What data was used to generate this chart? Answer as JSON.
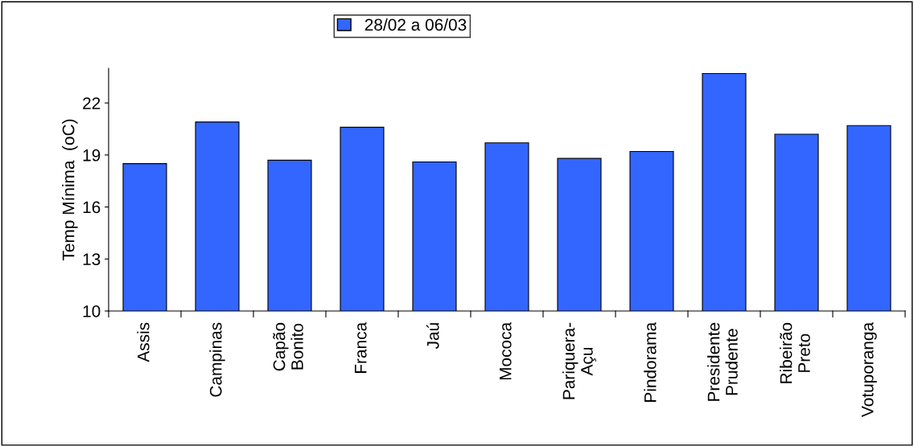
{
  "chart_data": {
    "type": "bar",
    "ylabel": "Temp Mínima  (oC)",
    "categories": [
      "Assis",
      "Campinas",
      "Capão\nBonito",
      "Franca",
      "Jaú",
      "Mococa",
      "Pariquera-\nAçu",
      "Pindorama",
      "Presidente\nPrudente",
      "Ribeirão\nPreto",
      "Votuporanga"
    ],
    "series": [
      {
        "name": "28/02 a 06/03",
        "color": "#3366ff",
        "values": [
          18.5,
          20.9,
          18.7,
          20.6,
          18.6,
          19.7,
          18.8,
          19.2,
          23.7,
          20.2,
          20.7
        ]
      }
    ],
    "ylim": [
      10,
      24
    ],
    "yticks": [
      10,
      13,
      16,
      19,
      22
    ],
    "grid": false,
    "legend": "top"
  }
}
